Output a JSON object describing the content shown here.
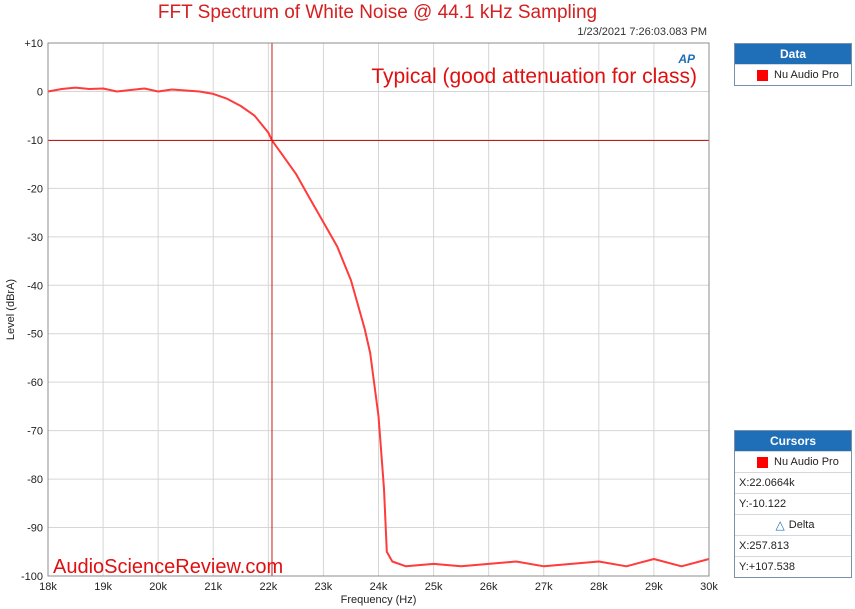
{
  "chart_data": {
    "type": "line",
    "title": "FFT Spectrum of White Noise @ 44.1 kHz Sampling",
    "timestamp": "1/23/2021 7:26:03.083 PM",
    "annotation": "Typical (good attenuation for class)",
    "watermark": "AudioScienceReview.com",
    "badge": "AP",
    "xlabel": "Frequency (Hz)",
    "ylabel": "Level (dBrA)",
    "xlim": [
      18000,
      30000
    ],
    "ylim": [
      -100,
      10
    ],
    "x_ticks": [
      18000,
      19000,
      20000,
      21000,
      22000,
      23000,
      24000,
      25000,
      26000,
      27000,
      28000,
      29000,
      30000
    ],
    "x_tick_labels": [
      "18k",
      "19k",
      "20k",
      "21k",
      "22k",
      "23k",
      "24k",
      "25k",
      "26k",
      "27k",
      "28k",
      "29k",
      "30k"
    ],
    "y_ticks": [
      10,
      0,
      -10,
      -20,
      -30,
      -40,
      -50,
      -60,
      -70,
      -80,
      -90,
      -100
    ],
    "y_tick_labels": [
      "+10",
      "0",
      "-10",
      "-20",
      "-30",
      "-40",
      "-50",
      "-60",
      "-70",
      "-80",
      "-90",
      "-100"
    ],
    "grid": true,
    "cursor": {
      "x": 22066.4,
      "y": -10.122
    },
    "series": [
      {
        "name": "Nu Audio Pro",
        "color": "#ff3b3b",
        "x": [
          18000,
          18250,
          18500,
          18750,
          19000,
          19250,
          19500,
          19750,
          20000,
          20250,
          20500,
          20750,
          21000,
          21250,
          21500,
          21750,
          22000,
          22066,
          22250,
          22500,
          22750,
          23000,
          23250,
          23500,
          23750,
          23850,
          24000,
          24100,
          24150,
          24250,
          24500,
          25000,
          25500,
          26000,
          26500,
          27000,
          27500,
          28000,
          28500,
          29000,
          29500,
          30000
        ],
        "y": [
          0,
          0.5,
          0.8,
          0.5,
          0.6,
          0,
          0.3,
          0.6,
          0,
          0.4,
          0.2,
          0,
          -0.5,
          -1.5,
          -3,
          -5,
          -8.5,
          -10.1,
          -13,
          -17,
          -22,
          -27,
          -32,
          -39,
          -49,
          -54,
          -67,
          -82,
          -95,
          -97,
          -98,
          -97.5,
          -98,
          -97.5,
          -97,
          -98,
          -97.5,
          -97,
          -98,
          -96.5,
          -98,
          -96.5
        ]
      }
    ]
  },
  "data_panel": {
    "title": "Data",
    "item": "Nu Audio Pro"
  },
  "cursors_panel": {
    "title": "Cursors",
    "item": "Nu Audio Pro",
    "x": "X:22.0664k",
    "y": "Y:-10.122",
    "delta_label": "Delta",
    "delta_x": "X:257.813",
    "delta_y": "Y:+107.538"
  }
}
